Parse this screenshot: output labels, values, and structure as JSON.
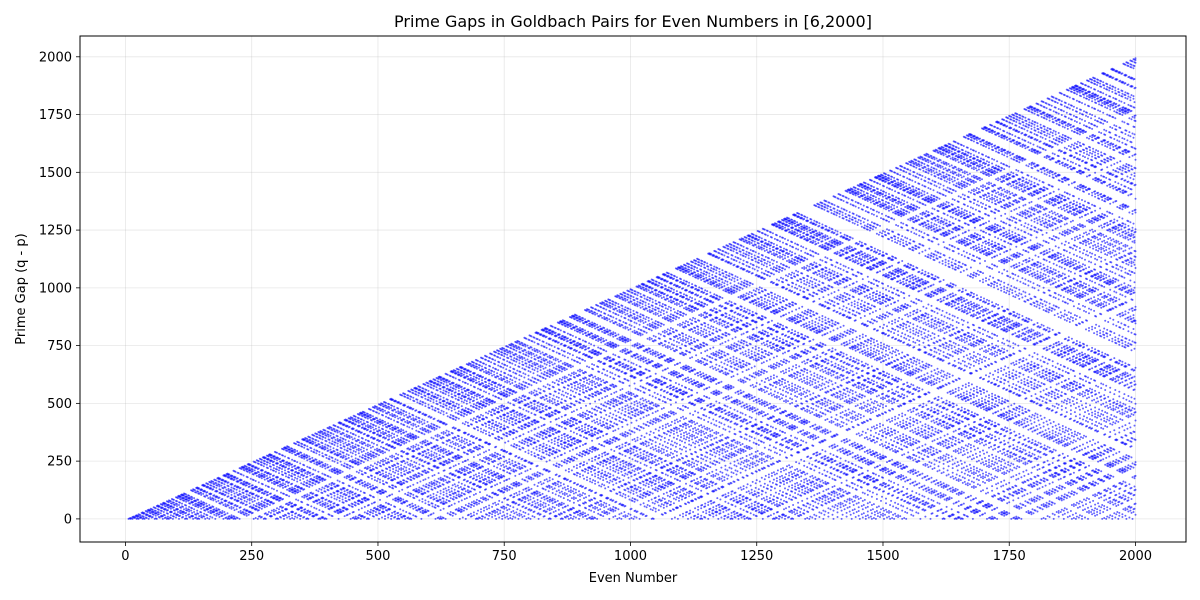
{
  "chart_data": {
    "type": "scatter",
    "title": "Prime Gaps in Goldbach Pairs for Even Numbers in [6,2000]",
    "xlabel": "Even Number",
    "ylabel": "Prime Gap (q - p)",
    "xlim": [
      -90,
      2100
    ],
    "ylim": [
      -100,
      2090
    ],
    "x_ticks": [
      0,
      250,
      500,
      750,
      1000,
      1250,
      1500,
      1750,
      2000
    ],
    "x_tick_labels": [
      "0",
      "250",
      "500",
      "750",
      "1000",
      "1250",
      "1500",
      "1750",
      "2000"
    ],
    "y_ticks": [
      0,
      250,
      500,
      750,
      1000,
      1250,
      1500,
      1750,
      2000
    ],
    "y_tick_labels": [
      "0",
      "250",
      "500",
      "750",
      "1000",
      "1250",
      "1500",
      "1750",
      "2000"
    ],
    "grid": true,
    "legend": "none",
    "series": [
      {
        "marker_color": "#0000ff",
        "marker_alpha": 0.6,
        "generation_rule": "for each even n in [6,2000] and each prime pair p <= q with p + q = n, a point at (n, q - p)",
        "x_range": [
          6,
          2000
        ],
        "y_range": [
          0,
          1994
        ]
      }
    ]
  }
}
